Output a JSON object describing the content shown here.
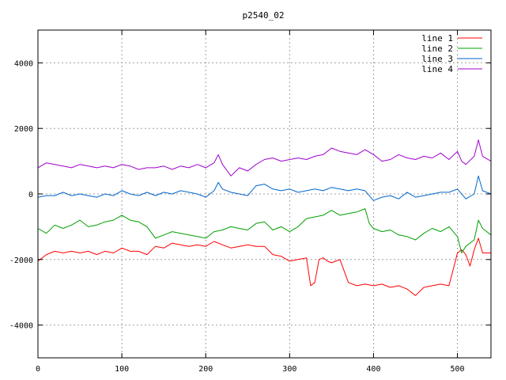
{
  "chart_data": {
    "type": "line",
    "title": "p2540_02",
    "xlabel": "",
    "ylabel": "",
    "xlim": [
      0,
      540
    ],
    "ylim": [
      -5000,
      5000
    ],
    "x_ticks": [
      0,
      100,
      200,
      300,
      400,
      500
    ],
    "y_ticks": [
      -4000,
      -2000,
      0,
      2000,
      4000
    ],
    "grid": true,
    "legend_position": "top-right",
    "series": [
      {
        "name": "line 1",
        "color": "#ff0000",
        "x": [
          0,
          10,
          20,
          30,
          40,
          50,
          60,
          70,
          80,
          90,
          100,
          110,
          120,
          130,
          140,
          150,
          160,
          170,
          180,
          190,
          200,
          210,
          220,
          230,
          240,
          250,
          260,
          270,
          280,
          290,
          300,
          310,
          320,
          325,
          330,
          335,
          340,
          345,
          350,
          360,
          370,
          380,
          390,
          400,
          410,
          420,
          430,
          440,
          450,
          460,
          470,
          480,
          490,
          500,
          505,
          510,
          515,
          520,
          525,
          530,
          540
        ],
        "values": [
          -2050,
          -1850,
          -1750,
          -1800,
          -1750,
          -1800,
          -1750,
          -1850,
          -1750,
          -1800,
          -1650,
          -1750,
          -1750,
          -1850,
          -1600,
          -1650,
          -1500,
          -1550,
          -1600,
          -1550,
          -1600,
          -1450,
          -1550,
          -1650,
          -1600,
          -1550,
          -1600,
          -1600,
          -1850,
          -1900,
          -2050,
          -2000,
          -1950,
          -2800,
          -2700,
          -2000,
          -1950,
          -2050,
          -2100,
          -2000,
          -2700,
          -2800,
          -2750,
          -2800,
          -2750,
          -2850,
          -2800,
          -2900,
          -3100,
          -2850,
          -2800,
          -2750,
          -2800,
          -1800,
          -1700,
          -1850,
          -2200,
          -1700,
          -1350,
          -1800,
          -1800
        ]
      },
      {
        "name": "line 2",
        "color": "#00a000",
        "x": [
          0,
          10,
          20,
          30,
          40,
          50,
          60,
          70,
          80,
          90,
          100,
          110,
          120,
          130,
          140,
          150,
          160,
          170,
          180,
          190,
          200,
          210,
          220,
          230,
          240,
          250,
          260,
          270,
          280,
          290,
          300,
          310,
          320,
          330,
          340,
          350,
          360,
          370,
          380,
          390,
          395,
          400,
          410,
          420,
          430,
          440,
          450,
          460,
          470,
          480,
          490,
          500,
          505,
          510,
          520,
          525,
          530,
          540
        ],
        "values": [
          -1050,
          -1200,
          -950,
          -1050,
          -950,
          -800,
          -1000,
          -950,
          -850,
          -800,
          -650,
          -800,
          -850,
          -1000,
          -1350,
          -1250,
          -1150,
          -1200,
          -1250,
          -1300,
          -1350,
          -1150,
          -1100,
          -1000,
          -1050,
          -1100,
          -900,
          -850,
          -1100,
          -1000,
          -1150,
          -1000,
          -750,
          -700,
          -650,
          -500,
          -650,
          -600,
          -550,
          -450,
          -900,
          -1050,
          -1150,
          -1100,
          -1250,
          -1300,
          -1400,
          -1200,
          -1050,
          -1150,
          -1000,
          -1300,
          -1800,
          -1600,
          -1400,
          -800,
          -1050,
          -1250
        ]
      },
      {
        "name": "line 3",
        "color": "#0066cc",
        "x": [
          0,
          10,
          20,
          30,
          40,
          50,
          60,
          70,
          80,
          90,
          100,
          110,
          120,
          130,
          140,
          150,
          160,
          170,
          180,
          190,
          200,
          210,
          215,
          220,
          230,
          240,
          250,
          260,
          270,
          280,
          290,
          300,
          310,
          320,
          330,
          340,
          350,
          360,
          370,
          380,
          390,
          400,
          410,
          420,
          430,
          440,
          450,
          460,
          470,
          480,
          490,
          500,
          510,
          520,
          525,
          530,
          540
        ],
        "values": [
          -100,
          -50,
          -50,
          50,
          -50,
          0,
          -50,
          -100,
          0,
          -50,
          100,
          0,
          -50,
          50,
          -50,
          50,
          0,
          100,
          50,
          0,
          -100,
          100,
          350,
          150,
          50,
          0,
          -50,
          250,
          300,
          150,
          100,
          150,
          50,
          100,
          150,
          100,
          200,
          150,
          100,
          150,
          100,
          -200,
          -100,
          -50,
          -150,
          50,
          -100,
          -50,
          0,
          50,
          50,
          150,
          -150,
          0,
          550,
          100,
          0
        ]
      },
      {
        "name": "line 4",
        "color": "#a000d0",
        "x": [
          0,
          10,
          20,
          30,
          40,
          50,
          60,
          70,
          80,
          90,
          100,
          110,
          120,
          130,
          140,
          150,
          160,
          170,
          180,
          190,
          200,
          210,
          215,
          220,
          230,
          240,
          250,
          260,
          270,
          280,
          290,
          300,
          310,
          320,
          330,
          340,
          350,
          360,
          370,
          380,
          390,
          400,
          410,
          420,
          430,
          440,
          450,
          460,
          470,
          480,
          490,
          500,
          505,
          510,
          520,
          525,
          530,
          540
        ],
        "values": [
          800,
          950,
          900,
          850,
          800,
          900,
          850,
          800,
          850,
          800,
          900,
          850,
          750,
          800,
          800,
          850,
          750,
          850,
          800,
          900,
          800,
          950,
          1200,
          900,
          550,
          800,
          700,
          900,
          1050,
          1100,
          1000,
          1050,
          1100,
          1050,
          1150,
          1200,
          1400,
          1300,
          1250,
          1200,
          1350,
          1200,
          1000,
          1050,
          1200,
          1100,
          1050,
          1150,
          1100,
          1250,
          1050,
          1300,
          1000,
          900,
          1150,
          1650,
          1150,
          1000
        ]
      }
    ]
  }
}
